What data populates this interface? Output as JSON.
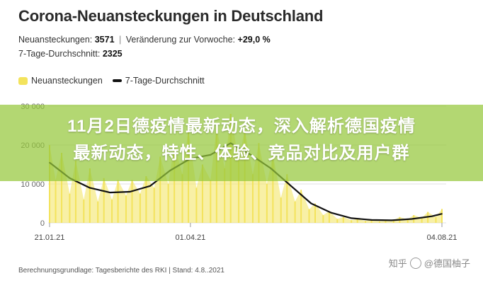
{
  "header": {
    "title": "Corona-Neuansteckungen in Deutschland",
    "stat1_label": "Neuansteckungen:",
    "stat1_value": "3571",
    "separator": "|",
    "stat1b_label": "Veränderung zur Vorwoche:",
    "stat1b_value": "+29,0 %",
    "stat2_label": "7-Tage-Durchschnitt:",
    "stat2_value": "2325"
  },
  "legend": {
    "bars_label": "Neuansteckungen",
    "line_label": "7-Tage-Durchschnitt"
  },
  "banner": {
    "line1": "11月2日德疫情最新动态，深入解析德国疫情",
    "line2": "最新动态，特性、体验、竞品对比及用户群"
  },
  "footer": {
    "source": "Berechnungsgrundlage: Tagesberichte des RKI | Stand: 4.8..2021"
  },
  "watermark": {
    "prefix": "知乎",
    "handle": "@德国柚子"
  },
  "colors": {
    "bars": "#f3e35c",
    "line": "#111111",
    "grid": "#e2e2e2",
    "banner": "#96c83c"
  },
  "chart_data": {
    "type": "area",
    "ylim": [
      0,
      30000
    ],
    "yticks": [
      0,
      10000,
      20000,
      30000
    ],
    "ytick_labels": [
      "0",
      "10 000",
      "20 000",
      "30 000"
    ],
    "x_labels": [
      "21.01.21",
      "01.04.21",
      "04.08.21"
    ],
    "x_domain": [
      "2021-01-21",
      "2021-08-04"
    ],
    "series": [
      {
        "name": "Neuansteckungen",
        "style": "bars",
        "x": [
          "2021-01-21",
          "2021-01-24",
          "2021-01-27",
          "2021-01-31",
          "2021-02-03",
          "2021-02-07",
          "2021-02-10",
          "2021-02-14",
          "2021-02-17",
          "2021-02-21",
          "2021-02-24",
          "2021-02-28",
          "2021-03-03",
          "2021-03-07",
          "2021-03-10",
          "2021-03-14",
          "2021-03-17",
          "2021-03-21",
          "2021-03-24",
          "2021-03-28",
          "2021-03-31",
          "2021-04-04",
          "2021-04-07",
          "2021-04-11",
          "2021-04-14",
          "2021-04-18",
          "2021-04-21",
          "2021-04-25",
          "2021-04-28",
          "2021-05-02",
          "2021-05-05",
          "2021-05-09",
          "2021-05-12",
          "2021-05-16",
          "2021-05-19",
          "2021-05-23",
          "2021-05-26",
          "2021-05-30",
          "2021-06-02",
          "2021-06-06",
          "2021-06-09",
          "2021-06-13",
          "2021-06-16",
          "2021-06-20",
          "2021-06-23",
          "2021-06-27",
          "2021-06-30",
          "2021-07-04",
          "2021-07-07",
          "2021-07-11",
          "2021-07-14",
          "2021-07-18",
          "2021-07-21",
          "2021-07-25",
          "2021-07-28",
          "2021-08-01",
          "2021-08-04"
        ],
        "values": [
          20000,
          11000,
          18000,
          7500,
          16000,
          6000,
          14000,
          5500,
          11500,
          6000,
          11000,
          7000,
          11000,
          7500,
          12000,
          9000,
          17000,
          10000,
          20000,
          12500,
          24000,
          9000,
          15000,
          11000,
          24500,
          14000,
          28000,
          16000,
          24000,
          12500,
          20500,
          10000,
          17500,
          6500,
          12500,
          5500,
          8500,
          3500,
          5000,
          2000,
          3000,
          1000,
          1500,
          700,
          1000,
          500,
          800,
          400,
          600,
          700,
          1500,
          900,
          2000,
          1300,
          2800,
          1500,
          3571
        ]
      },
      {
        "name": "7-Tage-Durchschnitt",
        "style": "line",
        "x": [
          "2021-01-21",
          "2021-01-31",
          "2021-02-10",
          "2021-02-20",
          "2021-03-02",
          "2021-03-12",
          "2021-03-22",
          "2021-04-01",
          "2021-04-11",
          "2021-04-21",
          "2021-05-01",
          "2021-05-11",
          "2021-05-21",
          "2021-05-31",
          "2021-06-10",
          "2021-06-20",
          "2021-06-30",
          "2021-07-10",
          "2021-07-20",
          "2021-07-30",
          "2021-08-04"
        ],
        "values": [
          15500,
          11500,
          9000,
          7800,
          8000,
          9500,
          13500,
          16500,
          17500,
          20500,
          17500,
          14000,
          9500,
          5000,
          2600,
          1200,
          750,
          650,
          1000,
          1700,
          2325
        ]
      }
    ]
  }
}
